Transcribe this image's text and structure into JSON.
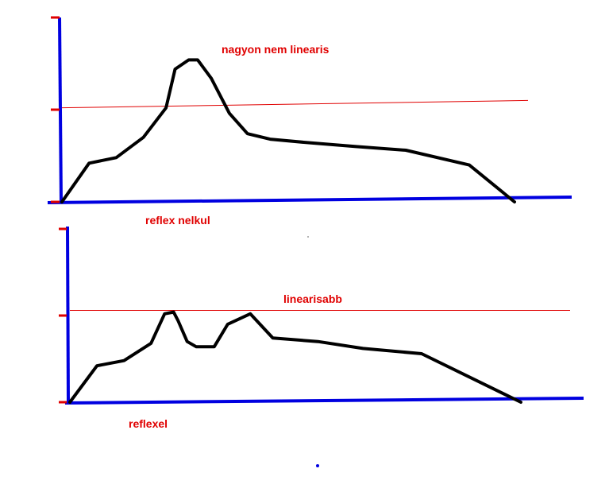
{
  "colors": {
    "axis": "#0000e0",
    "curve": "#000000",
    "reference": "#e00000",
    "text": "#e00000",
    "tick": "#e00000"
  },
  "chart_data": [
    {
      "type": "line",
      "annotation": "nagyon nem linearis",
      "caption": "reflex nelkul",
      "xlim": [
        0,
        100
      ],
      "ylim": [
        0,
        100
      ],
      "ticks_y": [
        0,
        50,
        100
      ],
      "reference_line": {
        "y_start": 51,
        "y_end": 55
      },
      "series": [
        {
          "x": [
            0,
            6,
            12,
            18,
            23,
            25,
            28,
            30,
            33,
            37,
            41,
            46,
            55,
            65,
            76,
            90,
            100
          ],
          "y": [
            0,
            21,
            24,
            35,
            51,
            72,
            77,
            77,
            67,
            48,
            37,
            34,
            32,
            30,
            28,
            20,
            0
          ]
        }
      ]
    },
    {
      "type": "line",
      "annotation": "linearisabb",
      "caption": "reflexel",
      "xlim": [
        0,
        100
      ],
      "ylim": [
        0,
        100
      ],
      "ticks_y": [
        0,
        50,
        100
      ],
      "reference_line": {
        "y_start": 53,
        "y_end": 53
      },
      "series": [
        {
          "x": [
            0,
            6,
            12,
            18,
            21,
            23,
            24,
            26,
            28,
            32,
            35,
            40,
            45,
            55,
            65,
            78,
            100
          ],
          "y": [
            0,
            21,
            24,
            34,
            51,
            52,
            47,
            35,
            32,
            32,
            45,
            51,
            37,
            35,
            31,
            28,
            0
          ]
        }
      ]
    }
  ],
  "stray_dot": "true"
}
